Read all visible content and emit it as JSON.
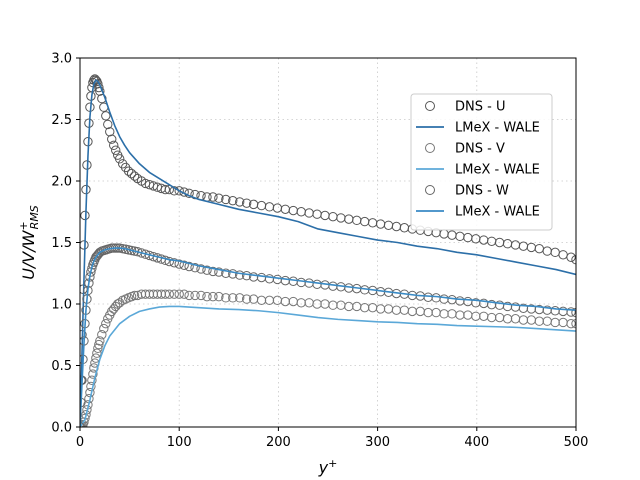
{
  "chart_data": {
    "type": "line",
    "title": "",
    "xlabel_main": "y",
    "xlabel_sup": "+",
    "ylabel_main": "U/V/W",
    "ylabel_sup": "+",
    "ylabel_sub": "RMS",
    "xlim": [
      0,
      500
    ],
    "ylim": [
      0,
      3.0
    ],
    "x_ticks": [
      0,
      100,
      200,
      300,
      400,
      500
    ],
    "x_tick_labels": [
      "0",
      "100",
      "200",
      "300",
      "400",
      "500"
    ],
    "y_ticks": [
      0.0,
      0.5,
      1.0,
      1.5,
      2.0,
      2.5,
      3.0
    ],
    "y_tick_labels": [
      "0.0",
      "0.5",
      "1.0",
      "1.5",
      "2.0",
      "2.5",
      "3.0"
    ],
    "grid": true,
    "legend_position": "upper-right",
    "series": [
      {
        "name": "DNS - U",
        "kind": "markers",
        "color": "#555555",
        "x": [
          0,
          1,
          2,
          3,
          4,
          5,
          6,
          7,
          8,
          9,
          10,
          11,
          12,
          13,
          14,
          15,
          16,
          17,
          18,
          19,
          20,
          22,
          24,
          26,
          28,
          30,
          32,
          34,
          36,
          38,
          40,
          43,
          46,
          49,
          52,
          55,
          58,
          62,
          66,
          70,
          74,
          78,
          82,
          86,
          90,
          95,
          100,
          105,
          110,
          116,
          122,
          128,
          134,
          140,
          147,
          154,
          161,
          168,
          175,
          183,
          191,
          199,
          207,
          215,
          223,
          231,
          239,
          247,
          255,
          263,
          271,
          279,
          287,
          295,
          303,
          311,
          319,
          327,
          335,
          343,
          351,
          359,
          367,
          375,
          383,
          391,
          399,
          407,
          415,
          423,
          431,
          439,
          447,
          455,
          463,
          471,
          479,
          487,
          495,
          500
        ],
        "y": [
          0.0,
          0.38,
          0.75,
          1.12,
          1.48,
          1.72,
          1.93,
          2.13,
          2.32,
          2.47,
          2.6,
          2.69,
          2.76,
          2.8,
          2.82,
          2.83,
          2.82,
          2.81,
          2.79,
          2.76,
          2.73,
          2.67,
          2.6,
          2.53,
          2.46,
          2.4,
          2.34,
          2.29,
          2.25,
          2.21,
          2.18,
          2.14,
          2.11,
          2.08,
          2.06,
          2.04,
          2.02,
          2.0,
          1.98,
          1.97,
          1.96,
          1.95,
          1.94,
          1.93,
          1.93,
          1.92,
          1.92,
          1.91,
          1.9,
          1.89,
          1.88,
          1.87,
          1.87,
          1.86,
          1.85,
          1.84,
          1.83,
          1.82,
          1.81,
          1.8,
          1.79,
          1.78,
          1.77,
          1.76,
          1.75,
          1.74,
          1.73,
          1.72,
          1.71,
          1.7,
          1.69,
          1.68,
          1.67,
          1.66,
          1.65,
          1.64,
          1.63,
          1.62,
          1.61,
          1.6,
          1.59,
          1.58,
          1.57,
          1.56,
          1.55,
          1.54,
          1.53,
          1.52,
          1.51,
          1.5,
          1.49,
          1.48,
          1.47,
          1.46,
          1.45,
          1.43,
          1.42,
          1.4,
          1.38,
          1.36
        ]
      },
      {
        "name": "LMeX - WALE",
        "kind": "line",
        "color": "#2c6fa8",
        "x": [
          0,
          2,
          4,
          6,
          8,
          10,
          12,
          14,
          16,
          18,
          20,
          25,
          30,
          35,
          40,
          45,
          50,
          60,
          70,
          80,
          90,
          100,
          110,
          120,
          140,
          160,
          180,
          200,
          220,
          240,
          260,
          280,
          300,
          320,
          340,
          360,
          380,
          400,
          420,
          440,
          460,
          480,
          500
        ],
        "y": [
          0.0,
          0.6,
          1.2,
          1.75,
          2.2,
          2.52,
          2.7,
          2.79,
          2.82,
          2.81,
          2.78,
          2.68,
          2.56,
          2.45,
          2.36,
          2.29,
          2.23,
          2.14,
          2.07,
          2.02,
          1.97,
          1.92,
          1.88,
          1.85,
          1.81,
          1.77,
          1.74,
          1.71,
          1.67,
          1.61,
          1.58,
          1.55,
          1.52,
          1.5,
          1.47,
          1.45,
          1.42,
          1.4,
          1.37,
          1.34,
          1.31,
          1.28,
          1.24
        ]
      },
      {
        "name": "DNS - V",
        "kind": "markers",
        "color": "#777777",
        "x": [
          0,
          1,
          2,
          3,
          4,
          5,
          6,
          7,
          8,
          9,
          10,
          11,
          12,
          13,
          14,
          15,
          16,
          17,
          18,
          19,
          20,
          22,
          24,
          26,
          28,
          30,
          32,
          34,
          36,
          38,
          40,
          43,
          46,
          49,
          52,
          55,
          58,
          62,
          66,
          70,
          74,
          78,
          82,
          86,
          90,
          95,
          100,
          105,
          110,
          116,
          122,
          128,
          134,
          140,
          147,
          154,
          161,
          168,
          175,
          183,
          191,
          199,
          207,
          215,
          223,
          231,
          239,
          247,
          255,
          263,
          271,
          279,
          287,
          295,
          303,
          311,
          319,
          327,
          335,
          343,
          351,
          359,
          367,
          375,
          383,
          391,
          399,
          407,
          415,
          423,
          431,
          439,
          447,
          455,
          463,
          471,
          479,
          487,
          495,
          500
        ],
        "y": [
          0.0,
          0.005,
          0.01,
          0.02,
          0.04,
          0.07,
          0.1,
          0.14,
          0.18,
          0.23,
          0.28,
          0.33,
          0.38,
          0.43,
          0.48,
          0.52,
          0.56,
          0.6,
          0.64,
          0.67,
          0.7,
          0.75,
          0.8,
          0.84,
          0.88,
          0.91,
          0.94,
          0.96,
          0.98,
          1.0,
          1.01,
          1.03,
          1.04,
          1.05,
          1.06,
          1.07,
          1.07,
          1.08,
          1.08,
          1.08,
          1.08,
          1.08,
          1.08,
          1.08,
          1.08,
          1.08,
          1.08,
          1.08,
          1.07,
          1.07,
          1.07,
          1.06,
          1.06,
          1.06,
          1.05,
          1.05,
          1.05,
          1.04,
          1.04,
          1.03,
          1.03,
          1.03,
          1.02,
          1.02,
          1.01,
          1.01,
          1.0,
          1.0,
          0.99,
          0.99,
          0.98,
          0.98,
          0.97,
          0.97,
          0.96,
          0.96,
          0.95,
          0.95,
          0.94,
          0.94,
          0.93,
          0.93,
          0.92,
          0.92,
          0.91,
          0.91,
          0.9,
          0.9,
          0.89,
          0.89,
          0.88,
          0.88,
          0.87,
          0.87,
          0.86,
          0.86,
          0.85,
          0.85,
          0.84,
          0.84
        ]
      },
      {
        "name": "LMeX - WALE",
        "kind": "line",
        "color": "#5ba8d8",
        "x": [
          0,
          5,
          10,
          15,
          20,
          25,
          30,
          40,
          50,
          60,
          70,
          80,
          90,
          100,
          110,
          120,
          140,
          160,
          180,
          200,
          220,
          240,
          260,
          280,
          300,
          320,
          340,
          360,
          380,
          400,
          420,
          440,
          460,
          480,
          500
        ],
        "y": [
          0.0,
          0.06,
          0.22,
          0.4,
          0.55,
          0.66,
          0.74,
          0.84,
          0.9,
          0.94,
          0.96,
          0.975,
          0.98,
          0.98,
          0.975,
          0.97,
          0.96,
          0.955,
          0.945,
          0.93,
          0.91,
          0.89,
          0.875,
          0.865,
          0.855,
          0.85,
          0.84,
          0.835,
          0.825,
          0.82,
          0.815,
          0.81,
          0.8,
          0.79,
          0.78
        ]
      },
      {
        "name": "DNS - W",
        "kind": "markers",
        "color": "#666666",
        "x": [
          0,
          1,
          2,
          3,
          4,
          5,
          6,
          7,
          8,
          9,
          10,
          11,
          12,
          13,
          14,
          15,
          16,
          17,
          18,
          19,
          20,
          22,
          24,
          26,
          28,
          30,
          32,
          34,
          36,
          38,
          40,
          43,
          46,
          49,
          52,
          55,
          58,
          62,
          66,
          70,
          74,
          78,
          82,
          86,
          90,
          95,
          100,
          105,
          110,
          116,
          122,
          128,
          134,
          140,
          147,
          154,
          161,
          168,
          175,
          183,
          191,
          199,
          207,
          215,
          223,
          231,
          239,
          247,
          255,
          263,
          271,
          279,
          287,
          295,
          303,
          311,
          319,
          327,
          335,
          343,
          351,
          359,
          367,
          375,
          383,
          391,
          399,
          407,
          415,
          423,
          431,
          439,
          447,
          455,
          463,
          471,
          479,
          487,
          495,
          500
        ],
        "y": [
          0.0,
          0.2,
          0.38,
          0.55,
          0.7,
          0.84,
          0.95,
          1.04,
          1.11,
          1.17,
          1.22,
          1.26,
          1.29,
          1.32,
          1.34,
          1.36,
          1.38,
          1.39,
          1.4,
          1.41,
          1.42,
          1.43,
          1.435,
          1.44,
          1.445,
          1.45,
          1.455,
          1.455,
          1.455,
          1.455,
          1.455,
          1.45,
          1.445,
          1.44,
          1.435,
          1.43,
          1.425,
          1.415,
          1.405,
          1.395,
          1.385,
          1.375,
          1.365,
          1.355,
          1.345,
          1.335,
          1.325,
          1.315,
          1.305,
          1.295,
          1.285,
          1.275,
          1.265,
          1.26,
          1.25,
          1.245,
          1.235,
          1.23,
          1.22,
          1.215,
          1.205,
          1.2,
          1.19,
          1.185,
          1.175,
          1.17,
          1.16,
          1.155,
          1.145,
          1.14,
          1.13,
          1.125,
          1.115,
          1.11,
          1.1,
          1.095,
          1.085,
          1.08,
          1.07,
          1.065,
          1.055,
          1.05,
          1.04,
          1.035,
          1.025,
          1.02,
          1.01,
          1.005,
          0.995,
          0.99,
          0.98,
          0.975,
          0.965,
          0.96,
          0.955,
          0.95,
          0.945,
          0.94,
          0.935,
          0.93
        ]
      },
      {
        "name": "LMeX - WALE",
        "kind": "line",
        "color": "#3a8ac4",
        "x": [
          0,
          2,
          4,
          6,
          8,
          10,
          12,
          14,
          16,
          18,
          20,
          25,
          30,
          35,
          40,
          45,
          50,
          60,
          70,
          80,
          90,
          100,
          110,
          120,
          140,
          160,
          180,
          200,
          220,
          240,
          260,
          280,
          300,
          320,
          340,
          360,
          380,
          400,
          420,
          440,
          460,
          480,
          500
        ],
        "y": [
          0.0,
          0.35,
          0.68,
          0.95,
          1.12,
          1.23,
          1.3,
          1.35,
          1.38,
          1.4,
          1.42,
          1.44,
          1.45,
          1.455,
          1.455,
          1.45,
          1.44,
          1.42,
          1.4,
          1.38,
          1.36,
          1.35,
          1.33,
          1.31,
          1.28,
          1.25,
          1.23,
          1.21,
          1.19,
          1.17,
          1.15,
          1.13,
          1.11,
          1.09,
          1.07,
          1.06,
          1.04,
          1.03,
          1.01,
          0.99,
          0.98,
          0.96,
          0.95
        ]
      }
    ]
  }
}
